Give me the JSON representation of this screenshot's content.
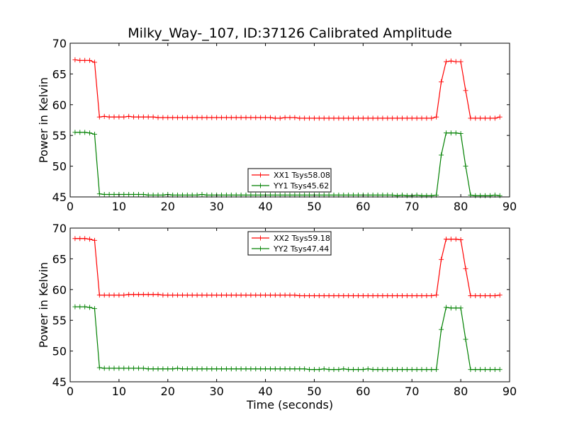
{
  "figure": {
    "title": "Milky_Way-_107, ID:37126 Calibrated Amplitude",
    "xlabel": "Time (seconds)"
  },
  "chart_data": [
    {
      "type": "line",
      "title": "Milky_Way-_107, ID:37126 Calibrated Amplitude",
      "xlabel": "",
      "ylabel": "Power in Kelvin",
      "xlim": [
        0,
        90
      ],
      "ylim": [
        45,
        70
      ],
      "xticks": [
        "0",
        "10",
        "20",
        "30",
        "40",
        "50",
        "60",
        "70",
        "80",
        "90"
      ],
      "yticks": [
        "45",
        "50",
        "55",
        "60",
        "65",
        "70"
      ],
      "legend_position": "lower-center",
      "series": [
        {
          "name": "XX1 Tsys58.08",
          "color": "#ff0000",
          "x": [
            1,
            2,
            3,
            4,
            5,
            6,
            7,
            8,
            9,
            10,
            11,
            12,
            13,
            14,
            15,
            16,
            17,
            18,
            19,
            20,
            21,
            22,
            23,
            24,
            25,
            26,
            27,
            28,
            29,
            30,
            31,
            32,
            33,
            34,
            35,
            36,
            37,
            38,
            39,
            40,
            41,
            42,
            43,
            44,
            45,
            46,
            47,
            48,
            49,
            50,
            51,
            52,
            53,
            54,
            55,
            56,
            57,
            58,
            59,
            60,
            61,
            62,
            63,
            64,
            65,
            66,
            67,
            68,
            69,
            70,
            71,
            72,
            73,
            74,
            75,
            76,
            77,
            78,
            79,
            80,
            81,
            82,
            83,
            84,
            85,
            86,
            87,
            88
          ],
          "y": [
            67.3,
            67.2,
            67.2,
            67.2,
            66.9,
            58.0,
            58.1,
            58.0,
            58.0,
            58.0,
            58.0,
            58.1,
            58.0,
            58.0,
            58.0,
            58.0,
            58.0,
            57.9,
            57.9,
            57.9,
            57.9,
            57.9,
            57.9,
            57.9,
            57.9,
            57.9,
            57.9,
            57.9,
            57.9,
            57.9,
            57.9,
            57.9,
            57.9,
            57.9,
            57.9,
            57.9,
            57.9,
            57.9,
            57.9,
            57.9,
            57.9,
            57.8,
            57.8,
            57.9,
            57.9,
            57.9,
            57.8,
            57.8,
            57.8,
            57.8,
            57.8,
            57.8,
            57.8,
            57.8,
            57.8,
            57.8,
            57.8,
            57.8,
            57.8,
            57.8,
            57.8,
            57.8,
            57.8,
            57.8,
            57.8,
            57.8,
            57.8,
            57.8,
            57.8,
            57.8,
            57.8,
            57.8,
            57.8,
            57.8,
            58.0,
            63.7,
            67.0,
            67.1,
            67.0,
            67.0,
            62.3,
            57.8,
            57.8,
            57.8,
            57.8,
            57.8,
            57.8,
            58.0
          ]
        },
        {
          "name": "YY1 Tsys45.62",
          "color": "#008000",
          "x": [
            1,
            2,
            3,
            4,
            5,
            6,
            7,
            8,
            9,
            10,
            11,
            12,
            13,
            14,
            15,
            16,
            17,
            18,
            19,
            20,
            21,
            22,
            23,
            24,
            25,
            26,
            27,
            28,
            29,
            30,
            31,
            32,
            33,
            34,
            35,
            36,
            37,
            38,
            39,
            40,
            41,
            42,
            43,
            44,
            45,
            46,
            47,
            48,
            49,
            50,
            51,
            52,
            53,
            54,
            55,
            56,
            57,
            58,
            59,
            60,
            61,
            62,
            63,
            64,
            65,
            66,
            67,
            68,
            69,
            70,
            71,
            72,
            73,
            74,
            75,
            76,
            77,
            78,
            79,
            80,
            81,
            82,
            83,
            84,
            85,
            86,
            87,
            88
          ],
          "y": [
            55.5,
            55.5,
            55.5,
            55.4,
            55.2,
            45.5,
            45.4,
            45.4,
            45.4,
            45.4,
            45.4,
            45.4,
            45.4,
            45.4,
            45.4,
            45.3,
            45.3,
            45.3,
            45.3,
            45.4,
            45.3,
            45.3,
            45.3,
            45.3,
            45.3,
            45.3,
            45.4,
            45.3,
            45.3,
            45.3,
            45.3,
            45.3,
            45.3,
            45.3,
            45.3,
            45.3,
            45.3,
            45.3,
            45.3,
            45.3,
            45.3,
            45.3,
            45.3,
            45.3,
            45.3,
            45.3,
            45.3,
            45.3,
            45.3,
            45.3,
            45.3,
            45.3,
            45.3,
            45.3,
            45.3,
            45.3,
            45.3,
            45.3,
            45.3,
            45.3,
            45.3,
            45.3,
            45.3,
            45.3,
            45.3,
            45.3,
            45.2,
            45.3,
            45.2,
            45.2,
            45.3,
            45.2,
            45.2,
            45.2,
            45.3,
            51.8,
            55.4,
            55.4,
            55.4,
            55.3,
            50.0,
            45.3,
            45.2,
            45.2,
            45.2,
            45.2,
            45.3,
            45.2
          ]
        }
      ]
    },
    {
      "type": "line",
      "title": "",
      "xlabel": "Time (seconds)",
      "ylabel": "Power in Kelvin",
      "xlim": [
        0,
        90
      ],
      "ylim": [
        45,
        70
      ],
      "xticks": [
        "0",
        "10",
        "20",
        "30",
        "40",
        "50",
        "60",
        "70",
        "80",
        "90"
      ],
      "yticks": [
        "45",
        "50",
        "55",
        "60",
        "65",
        "70"
      ],
      "legend_position": "upper-center",
      "series": [
        {
          "name": "XX2 Tsys59.18",
          "color": "#ff0000",
          "x": [
            1,
            2,
            3,
            4,
            5,
            6,
            7,
            8,
            9,
            10,
            11,
            12,
            13,
            14,
            15,
            16,
            17,
            18,
            19,
            20,
            21,
            22,
            23,
            24,
            25,
            26,
            27,
            28,
            29,
            30,
            31,
            32,
            33,
            34,
            35,
            36,
            37,
            38,
            39,
            40,
            41,
            42,
            43,
            44,
            45,
            46,
            47,
            48,
            49,
            50,
            51,
            52,
            53,
            54,
            55,
            56,
            57,
            58,
            59,
            60,
            61,
            62,
            63,
            64,
            65,
            66,
            67,
            68,
            69,
            70,
            71,
            72,
            73,
            74,
            75,
            76,
            77,
            78,
            79,
            80,
            81,
            82,
            83,
            84,
            85,
            86,
            87,
            88
          ],
          "y": [
            68.3,
            68.3,
            68.3,
            68.2,
            68.0,
            59.1,
            59.1,
            59.1,
            59.1,
            59.1,
            59.1,
            59.2,
            59.2,
            59.2,
            59.2,
            59.2,
            59.2,
            59.2,
            59.1,
            59.1,
            59.1,
            59.1,
            59.1,
            59.1,
            59.1,
            59.1,
            59.1,
            59.1,
            59.1,
            59.1,
            59.1,
            59.1,
            59.1,
            59.1,
            59.1,
            59.1,
            59.1,
            59.1,
            59.1,
            59.1,
            59.1,
            59.1,
            59.1,
            59.1,
            59.1,
            59.1,
            59.0,
            59.0,
            59.0,
            59.0,
            59.0,
            59.0,
            59.0,
            59.0,
            59.0,
            59.0,
            59.0,
            59.0,
            59.0,
            59.0,
            59.0,
            59.0,
            59.0,
            59.0,
            59.0,
            59.0,
            59.0,
            59.0,
            59.0,
            59.0,
            59.0,
            59.0,
            59.0,
            59.0,
            59.1,
            64.9,
            68.2,
            68.2,
            68.2,
            68.1,
            63.4,
            59.0,
            59.0,
            59.0,
            59.0,
            59.0,
            59.0,
            59.1
          ]
        },
        {
          "name": "YY2 Tsys47.44",
          "color": "#008000",
          "x": [
            1,
            2,
            3,
            4,
            5,
            6,
            7,
            8,
            9,
            10,
            11,
            12,
            13,
            14,
            15,
            16,
            17,
            18,
            19,
            20,
            21,
            22,
            23,
            24,
            25,
            26,
            27,
            28,
            29,
            30,
            31,
            32,
            33,
            34,
            35,
            36,
            37,
            38,
            39,
            40,
            41,
            42,
            43,
            44,
            45,
            46,
            47,
            48,
            49,
            50,
            51,
            52,
            53,
            54,
            55,
            56,
            57,
            58,
            59,
            60,
            61,
            62,
            63,
            64,
            65,
            66,
            67,
            68,
            69,
            70,
            71,
            72,
            73,
            74,
            75,
            76,
            77,
            78,
            79,
            80,
            81,
            82,
            83,
            84,
            85,
            86,
            87,
            88
          ],
          "y": [
            57.2,
            57.2,
            57.2,
            57.1,
            56.9,
            47.3,
            47.2,
            47.2,
            47.2,
            47.2,
            47.2,
            47.2,
            47.2,
            47.2,
            47.2,
            47.1,
            47.1,
            47.1,
            47.1,
            47.1,
            47.1,
            47.2,
            47.1,
            47.1,
            47.1,
            47.1,
            47.1,
            47.1,
            47.1,
            47.1,
            47.1,
            47.1,
            47.1,
            47.1,
            47.1,
            47.1,
            47.1,
            47.1,
            47.1,
            47.1,
            47.1,
            47.1,
            47.1,
            47.1,
            47.1,
            47.1,
            47.1,
            47.1,
            47.0,
            47.0,
            47.0,
            47.1,
            47.0,
            47.0,
            47.0,
            47.1,
            47.0,
            47.0,
            47.0,
            47.0,
            47.1,
            47.0,
            47.0,
            47.0,
            47.0,
            47.0,
            47.0,
            47.0,
            47.0,
            47.0,
            47.0,
            47.0,
            47.0,
            47.0,
            47.0,
            53.5,
            57.1,
            57.0,
            57.0,
            57.0,
            51.9,
            47.0,
            47.0,
            47.0,
            47.0,
            47.0,
            47.0,
            47.0
          ]
        }
      ]
    }
  ]
}
